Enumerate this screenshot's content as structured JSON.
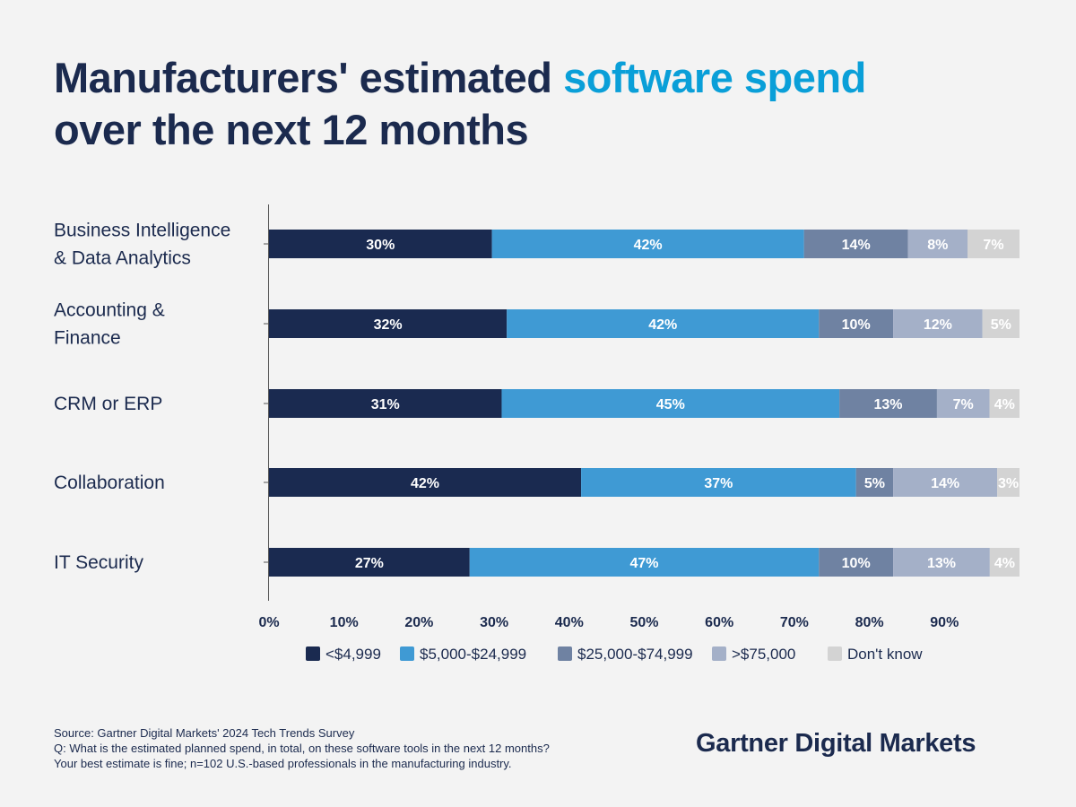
{
  "title": {
    "part1": "Manufacturers' estimated ",
    "accent": "software spend",
    "part2": "over the next 12 months"
  },
  "colors": {
    "title": "#1b2a4e",
    "accent": "#0a9fd8"
  },
  "chart_data": {
    "type": "bar",
    "orientation": "horizontal",
    "stacked": true,
    "categories": [
      [
        "Business Intelligence",
        "& Data Analytics"
      ],
      [
        "Accounting &",
        "Finance"
      ],
      [
        "CRM or ERP"
      ],
      [
        "Collaboration"
      ],
      [
        "IT Security"
      ]
    ],
    "series": [
      {
        "name": "<$4,999",
        "color": "#1a2a50",
        "values": [
          30,
          32,
          31,
          42,
          27
        ]
      },
      {
        "name": "$5,000-$24,999",
        "color": "#3f9ad4",
        "values": [
          42,
          42,
          45,
          37,
          47
        ]
      },
      {
        "name": "$25,000-$74,999",
        "color": "#6f82a2",
        "values": [
          14,
          10,
          13,
          5,
          10
        ]
      },
      {
        "name": ">$75,000",
        "color": "#a4b0c8",
        "values": [
          8,
          12,
          7,
          14,
          13
        ]
      },
      {
        "name": "Don't know",
        "color": "#d3d3d3",
        "values": [
          7,
          5,
          4,
          3,
          4
        ]
      }
    ],
    "xlim": [
      0,
      100
    ],
    "xticks": [
      "0%",
      "10%",
      "20%",
      "30%",
      "40%",
      "50%",
      "60%",
      "70%",
      "80%",
      "90%"
    ],
    "data_label_suffix": "%",
    "grid": false,
    "legend": "bottom"
  },
  "footer": {
    "source": "Source: Gartner Digital Markets' 2024 Tech Trends Survey",
    "question": "Q: What is the estimated planned spend, in total, on these software tools in the next 12 months?",
    "note": "Your best estimate is fine; n=102 U.S.-based professionals in the manufacturing industry."
  },
  "logo": "Gartner Digital Markets"
}
